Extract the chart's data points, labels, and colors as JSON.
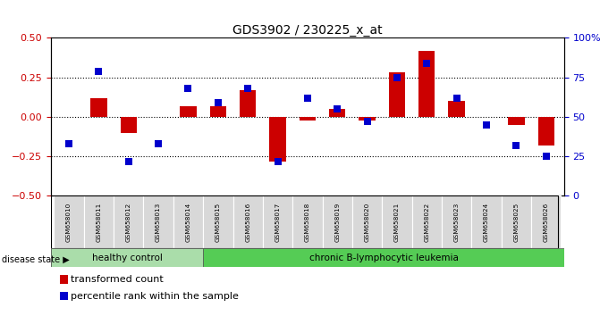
{
  "title": "GDS3902 / 230225_x_at",
  "samples": [
    "GSM658010",
    "GSM658011",
    "GSM658012",
    "GSM658013",
    "GSM658014",
    "GSM658015",
    "GSM658016",
    "GSM658017",
    "GSM658018",
    "GSM658019",
    "GSM658020",
    "GSM658021",
    "GSM658022",
    "GSM658023",
    "GSM658024",
    "GSM658025",
    "GSM658026"
  ],
  "red_bars": [
    0.0,
    0.12,
    -0.1,
    0.0,
    0.07,
    0.07,
    0.17,
    -0.28,
    -0.02,
    0.05,
    -0.02,
    0.28,
    0.42,
    0.1,
    0.0,
    -0.05,
    -0.18
  ],
  "blue_dots": [
    33,
    79,
    22,
    33,
    68,
    59,
    68,
    22,
    62,
    55,
    47,
    75,
    84,
    62,
    45,
    32,
    25
  ],
  "healthy_count": 5,
  "ylim_left": [
    -0.5,
    0.5
  ],
  "ylim_right": [
    0,
    100
  ],
  "left_yticks": [
    -0.5,
    -0.25,
    0.0,
    0.25,
    0.5
  ],
  "right_yticks": [
    0,
    25,
    50,
    75,
    100
  ],
  "red_color": "#cc0000",
  "blue_color": "#0000cc",
  "healthy_color": "#aaddaa",
  "leukemia_color": "#55cc55",
  "bar_width": 0.55,
  "bg_color": "#ffffff",
  "dot_size": 28,
  "ylabel_left_color": "#cc0000",
  "ylabel_right_color": "#0000cc",
  "sample_box_color": "#d8d8d8",
  "sample_box_edge": "#aaaaaa"
}
